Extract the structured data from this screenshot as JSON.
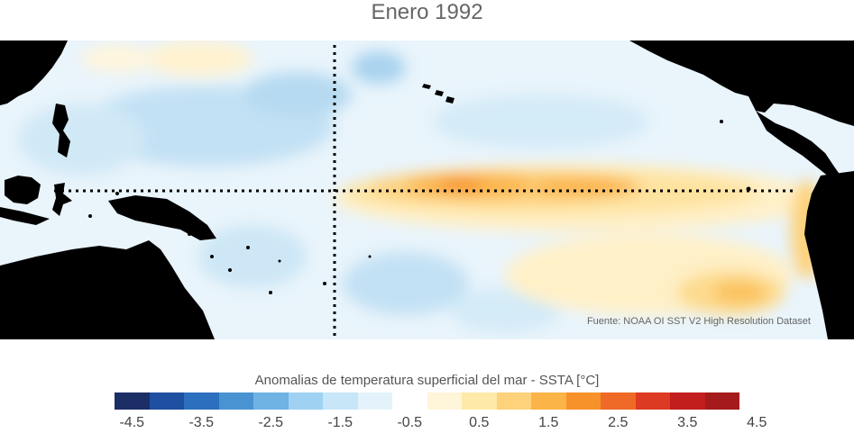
{
  "title": "Enero 1992",
  "source_note": "Fuente: NOAA OI SST V2 High Resolution Dataset",
  "colorbar": {
    "label": "Anomalias de temperatura superficial del mar - SSTA  [°C]",
    "tick_labels": [
      "-4.5",
      "-3.5",
      "-2.5",
      "-1.5",
      "-0.5",
      "0.5",
      "1.5",
      "2.5",
      "3.5",
      "4.5"
    ],
    "colors": [
      "#1b2e66",
      "#1f4fa0",
      "#2d6fbf",
      "#4a93d2",
      "#6fb2e4",
      "#9fd2f2",
      "#c7e6f8",
      "#e4f3fb",
      "#ffffff",
      "#fff5d8",
      "#fee9a8",
      "#fdd27a",
      "#fbb447",
      "#f7922b",
      "#ef6a26",
      "#dc3a22",
      "#c21e1e",
      "#a51b1b"
    ]
  },
  "map": {
    "lines": [
      "dotted equator line",
      "dotted meridian line"
    ],
    "land_color": "#000000"
  }
}
